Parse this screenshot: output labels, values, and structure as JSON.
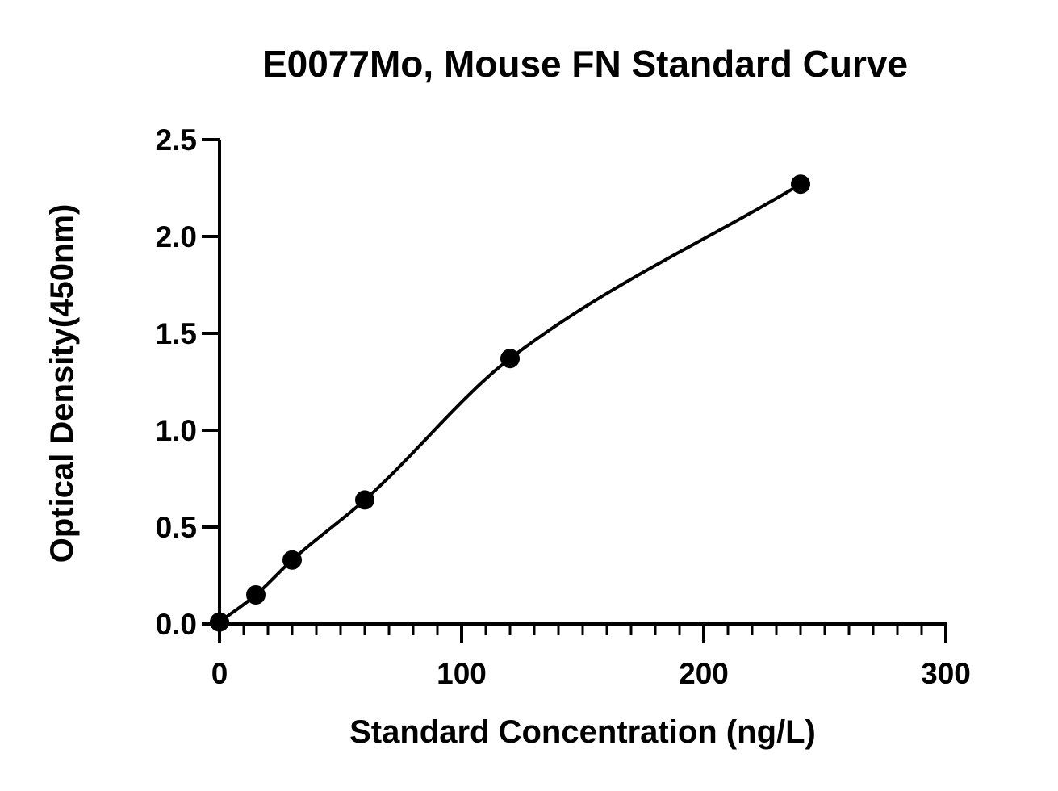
{
  "chart_data": {
    "type": "scatter",
    "title": "E0077Mo, Mouse FN Standard Curve",
    "xlabel": "Standard Concentration (ng/L)",
    "ylabel": "Optical Density(450nm)",
    "xlim": [
      0,
      300
    ],
    "ylim": [
      0,
      2.5
    ],
    "x_ticks": [
      0,
      100,
      200,
      300
    ],
    "x_tick_labels": [
      "0",
      "100",
      "200",
      "300"
    ],
    "x_minor_step": 10,
    "y_ticks": [
      0,
      0.5,
      1.0,
      1.5,
      2.0,
      2.5
    ],
    "y_tick_labels": [
      "0.0",
      "0.5",
      "1.0",
      "1.5",
      "2.0",
      "2.5"
    ],
    "grid": false,
    "legend": "none",
    "series": [
      {
        "x": [
          0,
          15,
          30,
          60,
          120,
          240
        ],
        "y": [
          0.01,
          0.15,
          0.33,
          0.64,
          1.37,
          2.27
        ]
      }
    ],
    "fit_curve": true,
    "color": "#000000"
  }
}
